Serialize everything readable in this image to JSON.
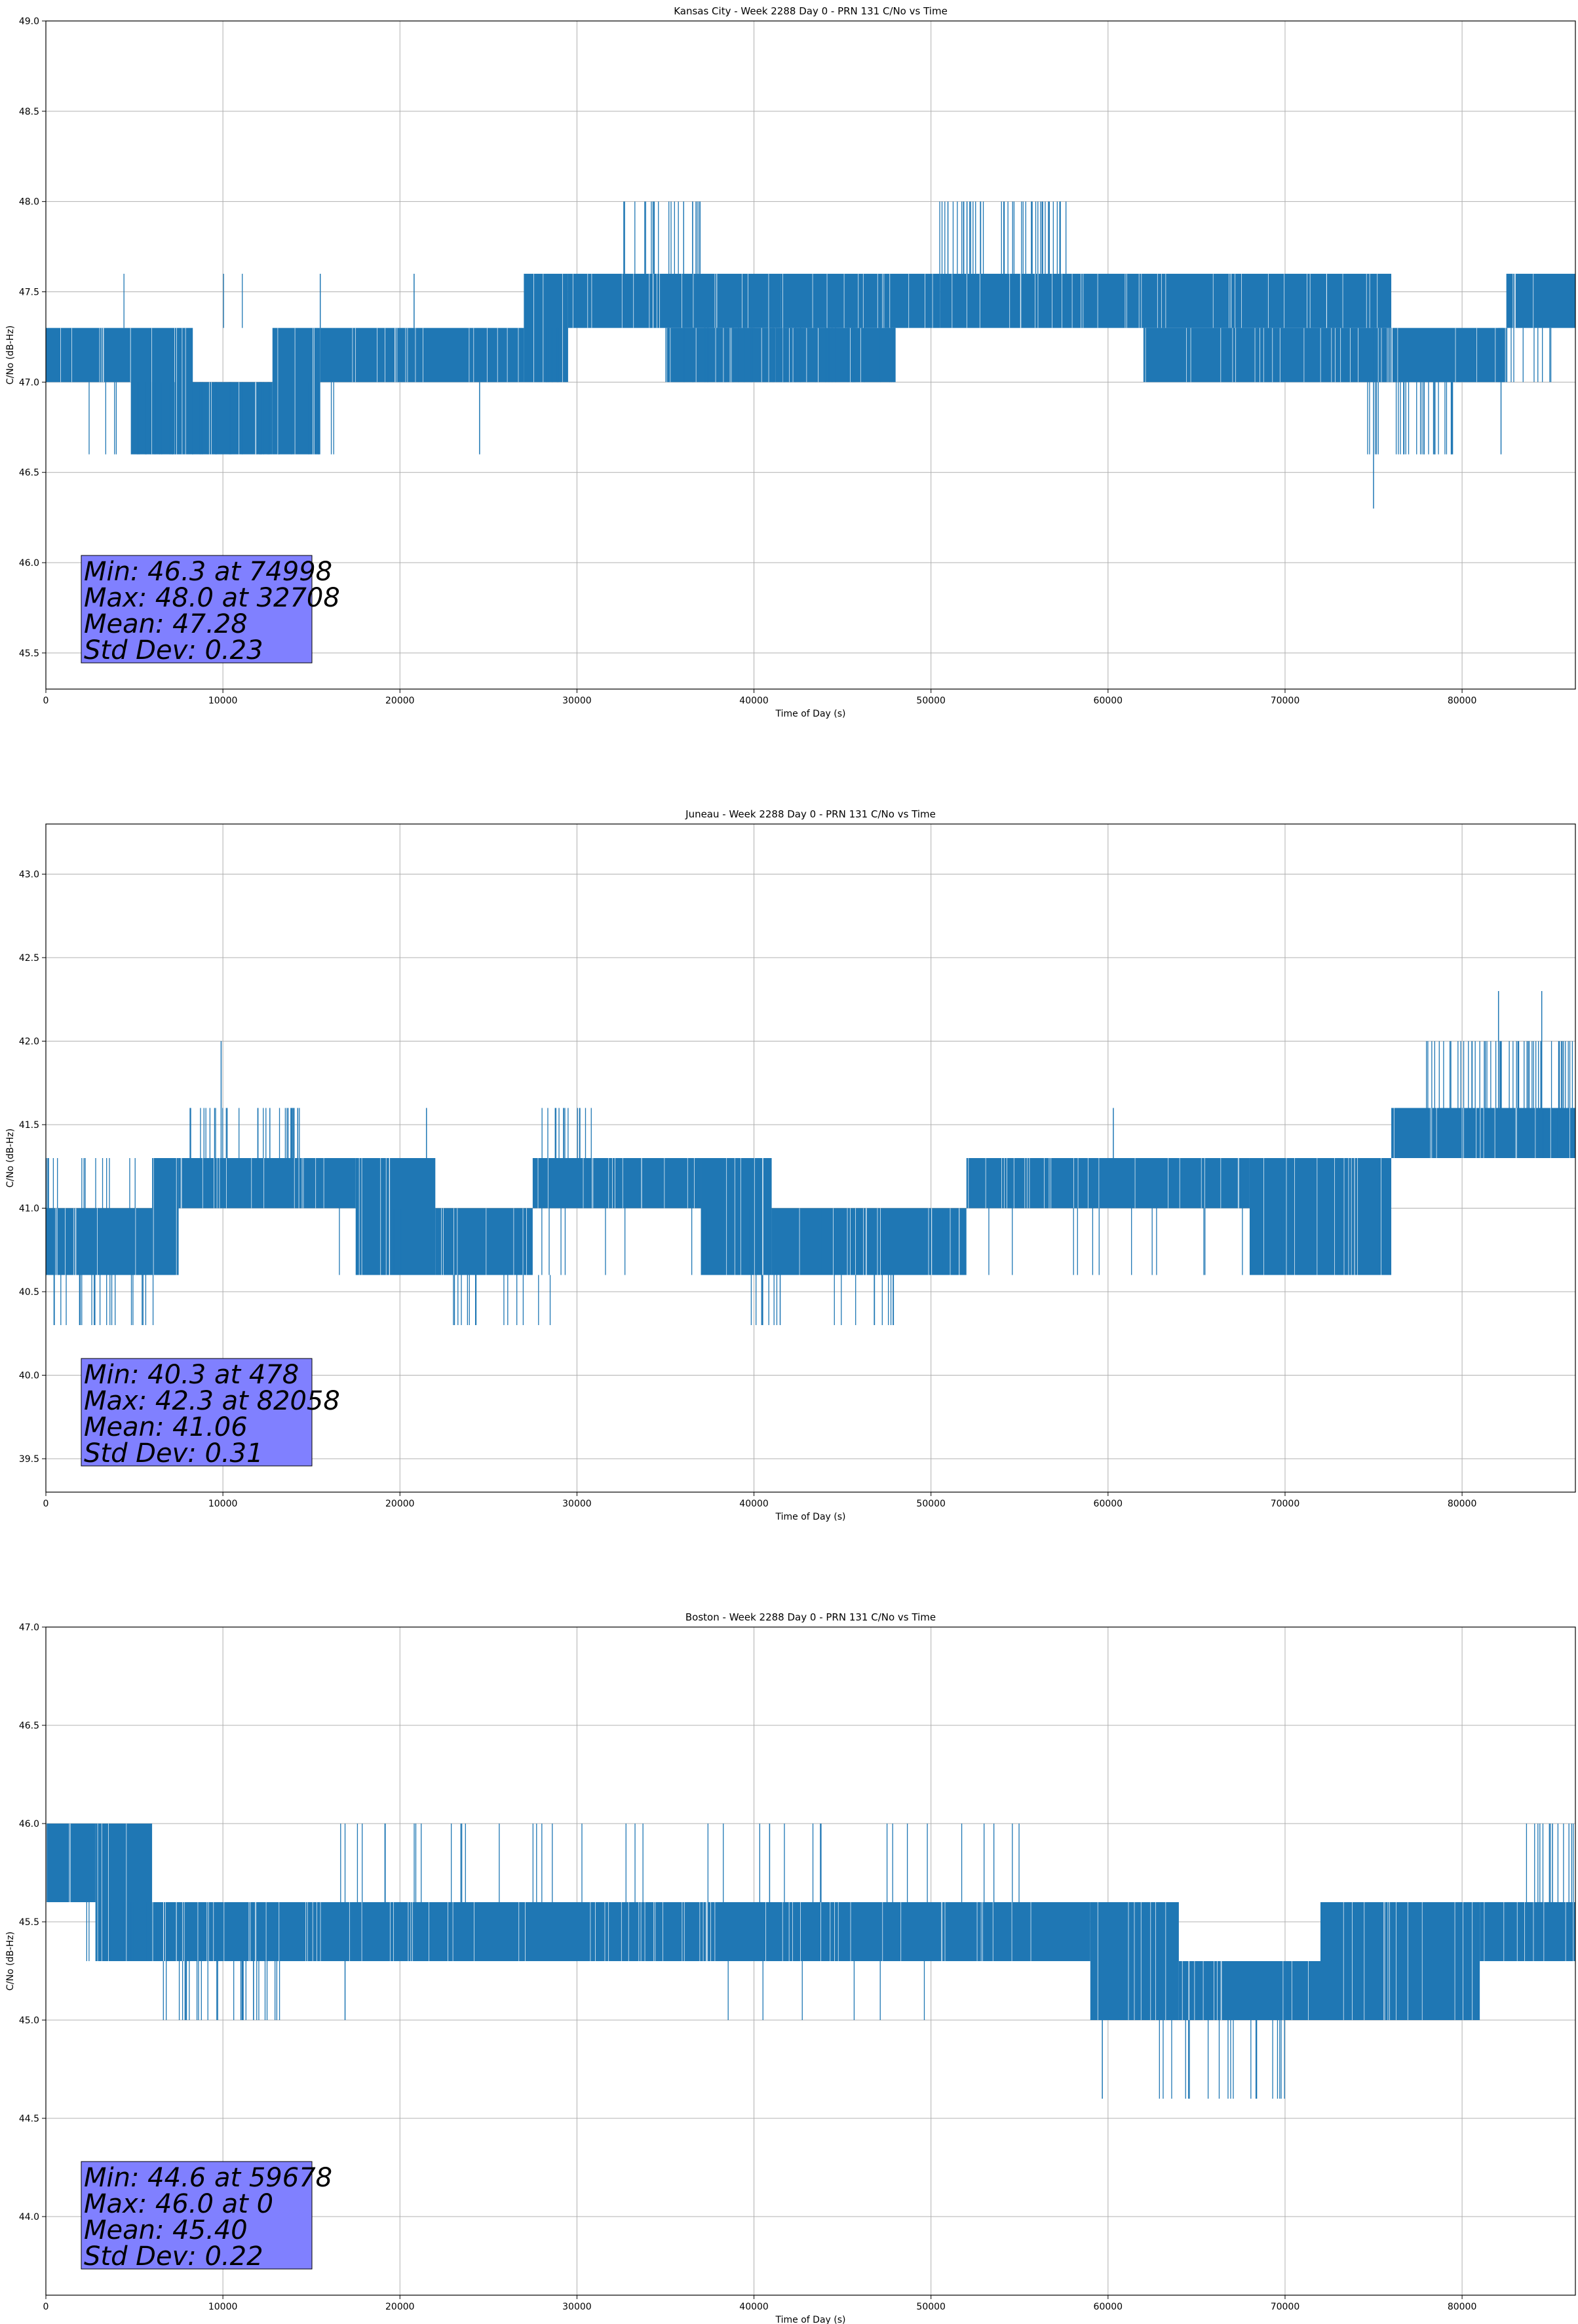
{
  "chart_data": [
    {
      "type": "line",
      "title": "Kansas City - Week 2288 Day 0 - PRN 131 C/No vs Time",
      "xlabel": "Time of Day (s)",
      "ylabel": "C/No (dB-Hz)",
      "xlim": [
        0,
        86400
      ],
      "ylim": [
        45.3,
        49.0
      ],
      "x_ticks": [
        0,
        10000,
        20000,
        30000,
        40000,
        50000,
        60000,
        70000,
        80000
      ],
      "y_ticks": [
        "45.5",
        "46.0",
        "46.5",
        "47.0",
        "47.5",
        "48.0",
        "48.5",
        "49.0"
      ],
      "grid": true,
      "series": [
        {
          "color": "#1f77b4",
          "bands": [
            {
              "x": [
                0,
                4800
              ],
              "y": [
                47.0,
                47.3
              ]
            },
            {
              "x": [
                4800,
                8300
              ],
              "y": [
                46.6,
                47.3
              ]
            },
            {
              "x": [
                8300,
                12800
              ],
              "y": [
                46.6,
                47.0
              ]
            },
            {
              "x": [
                12800,
                15500
              ],
              "y": [
                46.6,
                47.3
              ]
            },
            {
              "x": [
                15500,
                27000
              ],
              "y": [
                47.0,
                47.3
              ]
            },
            {
              "x": [
                27000,
                29500
              ],
              "y": [
                47.0,
                47.6
              ]
            },
            {
              "x": [
                29500,
                41500
              ],
              "y": [
                47.3,
                47.6
              ]
            },
            {
              "x": [
                35000,
                48000
              ],
              "y": [
                47.0,
                47.3
              ]
            },
            {
              "x": [
                41500,
                50500
              ],
              "y": [
                47.3,
                47.6
              ]
            },
            {
              "x": [
                50500,
                58500
              ],
              "y": [
                47.3,
                47.6
              ]
            },
            {
              "x": [
                58500,
                69000
              ],
              "y": [
                47.3,
                47.6
              ]
            },
            {
              "x": [
                62000,
                82500
              ],
              "y": [
                47.0,
                47.3
              ]
            },
            {
              "x": [
                69000,
                76000
              ],
              "y": [
                47.3,
                47.6
              ]
            },
            {
              "x": [
                82500,
                86400
              ],
              "y": [
                47.3,
                47.6
              ]
            }
          ],
          "spikes": [
            {
              "x_range": [
                2000,
                16500
              ],
              "y": 46.6,
              "from": 47.0,
              "n": 40
            },
            {
              "x_range": [
                28000,
                29000
              ],
              "y": 47.0,
              "from": 47.3,
              "n": 8
            },
            {
              "x_range": [
                32500,
                37000
              ],
              "y": 48.0,
              "from": 47.6,
              "n": 22
            },
            {
              "x_range": [
                50300,
                58000
              ],
              "y": 48.0,
              "from": 47.6,
              "n": 45
            },
            {
              "x_range": [
                36000,
                48000
              ],
              "y": 47.0,
              "from": 47.3,
              "n": 40
            },
            {
              "x_range": [
                74500,
                79500
              ],
              "y": 46.6,
              "from": 47.0,
              "n": 30
            },
            {
              "x_range": [
                82000,
                85500
              ],
              "y": 47.0,
              "from": 47.3,
              "n": 12
            },
            {
              "x_range": [
                3500,
                15000
              ],
              "y": 47.6,
              "from": 47.3,
              "n": 3
            }
          ],
          "points": [
            {
              "x": 74998,
              "y": 46.3
            },
            {
              "x": 24500,
              "y": 46.6
            },
            {
              "x": 20800,
              "y": 47.6
            },
            {
              "x": 15500,
              "y": 47.6
            },
            {
              "x": 82200,
              "y": 46.6
            }
          ]
        }
      ],
      "stats": [
        "Min: 46.3 at 74998",
        "Max: 48.0 at 32708",
        "Mean: 47.28",
        "Std Dev: 0.23"
      ]
    },
    {
      "type": "line",
      "title": "Juneau - Week 2288 Day 0 - PRN 131 C/No vs Time",
      "xlabel": "Time of Day (s)",
      "ylabel": "C/No (dB-Hz)",
      "xlim": [
        0,
        86400
      ],
      "ylim": [
        39.3,
        43.3
      ],
      "x_ticks": [
        0,
        10000,
        20000,
        30000,
        40000,
        50000,
        60000,
        70000,
        80000
      ],
      "y_ticks": [
        "39.5",
        "40.0",
        "40.5",
        "41.0",
        "41.5",
        "42.0",
        "42.5",
        "43.0"
      ],
      "grid": true,
      "series": [
        {
          "color": "#1f77b4",
          "bands": [
            {
              "x": [
                0,
                6000
              ],
              "y": [
                40.6,
                41.0
              ]
            },
            {
              "x": [
                6000,
                7500
              ],
              "y": [
                40.6,
                41.3
              ]
            },
            {
              "x": [
                7500,
                17500
              ],
              "y": [
                41.0,
                41.3
              ]
            },
            {
              "x": [
                17500,
                22000
              ],
              "y": [
                40.6,
                41.3
              ]
            },
            {
              "x": [
                22000,
                27500
              ],
              "y": [
                40.6,
                41.0
              ]
            },
            {
              "x": [
                27500,
                37000
              ],
              "y": [
                41.0,
                41.3
              ]
            },
            {
              "x": [
                37000,
                41000
              ],
              "y": [
                40.6,
                41.3
              ]
            },
            {
              "x": [
                41000,
                52000
              ],
              "y": [
                40.6,
                41.0
              ]
            },
            {
              "x": [
                52000,
                68000
              ],
              "y": [
                41.0,
                41.3
              ]
            },
            {
              "x": [
                68000,
                76000
              ],
              "y": [
                40.6,
                41.3
              ]
            },
            {
              "x": [
                76000,
                81000
              ],
              "y": [
                41.3,
                41.6
              ]
            },
            {
              "x": [
                81000,
                86400
              ],
              "y": [
                41.3,
                41.6
              ]
            }
          ],
          "spikes": [
            {
              "x_range": [
                0,
                6000
              ],
              "y": 41.3,
              "from": 41.0,
              "n": 14
            },
            {
              "x_range": [
                0,
                6200
              ],
              "y": 40.3,
              "from": 40.6,
              "n": 20
            },
            {
              "x_range": [
                8000,
                15000
              ],
              "y": 41.6,
              "from": 41.3,
              "n": 30
            },
            {
              "x_range": [
                22000,
                28500
              ],
              "y": 40.3,
              "from": 40.6,
              "n": 14
            },
            {
              "x_range": [
                28000,
                31000
              ],
              "y": 41.6,
              "from": 41.3,
              "n": 14
            },
            {
              "x_range": [
                39500,
                41500
              ],
              "y": 40.3,
              "from": 40.6,
              "n": 10
            },
            {
              "x_range": [
                44500,
                48000
              ],
              "y": 40.3,
              "from": 40.6,
              "n": 10
            },
            {
              "x_range": [
                77500,
                86400
              ],
              "y": 42.0,
              "from": 41.6,
              "n": 50
            },
            {
              "x_range": [
                15000,
                75000
              ],
              "y": 40.6,
              "from": 41.0,
              "n": 40
            },
            {
              "x_range": [
                80000,
                86000
              ],
              "y": 41.3,
              "from": 41.6,
              "n": 6
            }
          ],
          "points": [
            {
              "x": 478,
              "y": 40.3
            },
            {
              "x": 82058,
              "y": 42.3
            },
            {
              "x": 84500,
              "y": 42.3
            },
            {
              "x": 9900,
              "y": 42.0
            },
            {
              "x": 60300,
              "y": 41.6
            },
            {
              "x": 21500,
              "y": 41.6
            }
          ]
        }
      ],
      "stats": [
        "Min: 40.3 at 478",
        "Max: 42.3 at 82058",
        "Mean: 41.06",
        "Std Dev: 0.31"
      ]
    },
    {
      "type": "line",
      "title": "Boston - Week 2288 Day 0 - PRN 131 C/No vs Time",
      "xlabel": "Time of Day (s)",
      "ylabel": "C/No (dB-Hz)",
      "xlim": [
        0,
        86400
      ],
      "ylim": [
        43.6,
        47.0
      ],
      "x_ticks": [
        0,
        10000,
        20000,
        30000,
        40000,
        50000,
        60000,
        70000,
        80000
      ],
      "y_ticks": [
        "44.0",
        "44.5",
        "45.0",
        "45.5",
        "46.0",
        "46.5",
        "47.0"
      ],
      "grid": true,
      "series": [
        {
          "color": "#1f77b4",
          "bands": [
            {
              "x": [
                0,
                2800
              ],
              "y": [
                45.6,
                46.0
              ]
            },
            {
              "x": [
                2800,
                6000
              ],
              "y": [
                45.3,
                46.0
              ]
            },
            {
              "x": [
                6000,
                59000
              ],
              "y": [
                45.3,
                45.6
              ]
            },
            {
              "x": [
                59000,
                64000
              ],
              "y": [
                45.0,
                45.6
              ]
            },
            {
              "x": [
                64000,
                72000
              ],
              "y": [
                45.0,
                45.3
              ]
            },
            {
              "x": [
                72000,
                81000
              ],
              "y": [
                45.0,
                45.6
              ]
            },
            {
              "x": [
                81000,
                86400
              ],
              "y": [
                45.3,
                45.6
              ]
            }
          ],
          "spikes": [
            {
              "x_range": [
                6500,
                13500
              ],
              "y": 45.0,
              "from": 45.3,
              "n": 30
            },
            {
              "x_range": [
                16000,
                58000
              ],
              "y": 46.0,
              "from": 45.6,
              "n": 40
            },
            {
              "x_range": [
                62500,
                70000
              ],
              "y": 44.6,
              "from": 45.0,
              "n": 20
            },
            {
              "x_range": [
                83000,
                86400
              ],
              "y": 46.0,
              "from": 45.6,
              "n": 14
            },
            {
              "x_range": [
                38000,
                50000
              ],
              "y": 45.0,
              "from": 45.3,
              "n": 6
            },
            {
              "x_range": [
                2000,
                6500
              ],
              "y": 45.3,
              "from": 45.6,
              "n": 10
            }
          ],
          "points": [
            {
              "x": 59678,
              "y": 44.6
            },
            {
              "x": 0,
              "y": 46.0
            },
            {
              "x": 16900,
              "y": 45.0
            }
          ]
        }
      ],
      "stats": [
        "Min: 44.6 at 59678",
        "Max: 46.0 at 0",
        "Mean: 45.40",
        "Std Dev: 0.22"
      ]
    }
  ]
}
